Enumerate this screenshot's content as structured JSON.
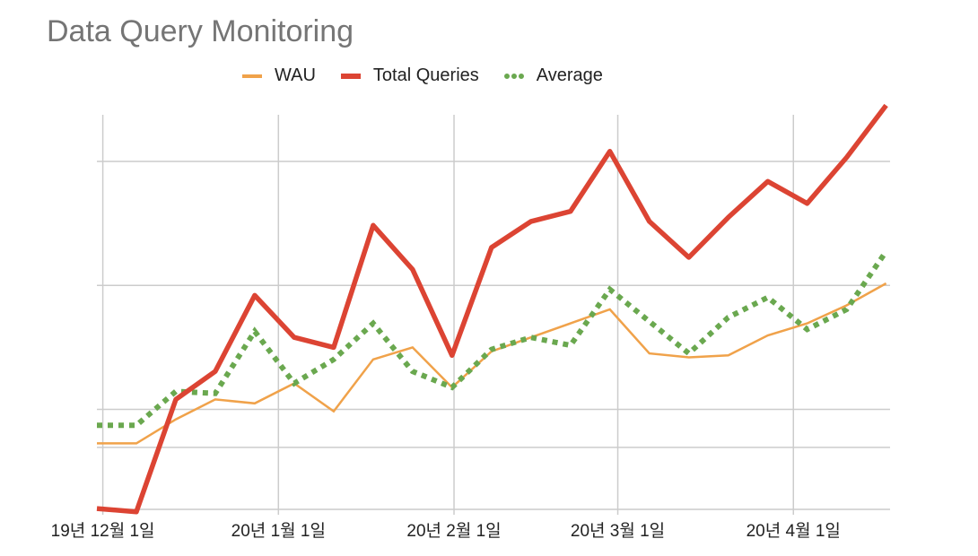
{
  "chart_data": {
    "type": "line",
    "title": "Data Query Monitoring",
    "xlabel": "",
    "ylabel": "",
    "x": [
      0,
      1,
      2,
      3,
      4,
      5,
      6,
      7,
      8,
      9,
      10,
      11,
      12,
      13,
      14,
      15,
      16,
      17,
      18,
      19,
      20
    ],
    "x_tick_labels": [
      {
        "x": 0.15,
        "label": "19년 12월 1일"
      },
      {
        "x": 4.6,
        "label": "20년 1월 1일"
      },
      {
        "x": 9.05,
        "label": "20년 2월 1일"
      },
      {
        "x": 13.2,
        "label": "20년 3월 1일"
      },
      {
        "x": 17.65,
        "label": "20년 4월 1일"
      }
    ],
    "xlim": [
      0,
      20.1
    ],
    "ylim": [
      0,
      100
    ],
    "y_gridlines": [
      0,
      15.5,
      25,
      56,
      87
    ],
    "grid": true,
    "legend_position": "top-center",
    "series": [
      {
        "name": "WAU",
        "color": "#f0a24a",
        "line_style": "solid-thin",
        "values": [
          16.5,
          16.5,
          22.5,
          27.5,
          26.5,
          31.5,
          24.5,
          37.5,
          40.5,
          30.5,
          39.5,
          43,
          46.5,
          50,
          39,
          38,
          38.5,
          43.5,
          46.5,
          51,
          56.5
        ]
      },
      {
        "name": "Total Queries",
        "color": "#dc4433",
        "line_style": "solid-thick",
        "values": [
          0.2,
          -0.6,
          27.5,
          34.5,
          53.5,
          43,
          40.5,
          71,
          60,
          38.5,
          65.5,
          72,
          74.5,
          89.5,
          72,
          63,
          73,
          82,
          76.5,
          88,
          101
        ]
      },
      {
        "name": "Average",
        "color": "#6aa84f",
        "line_style": "dotted-thick",
        "values": [
          21,
          21,
          29.5,
          29,
          44.5,
          31.5,
          37.5,
          46.5,
          34.5,
          30.5,
          40,
          43,
          41,
          55,
          47,
          39,
          48,
          53,
          45,
          50,
          64.5
        ]
      }
    ]
  }
}
